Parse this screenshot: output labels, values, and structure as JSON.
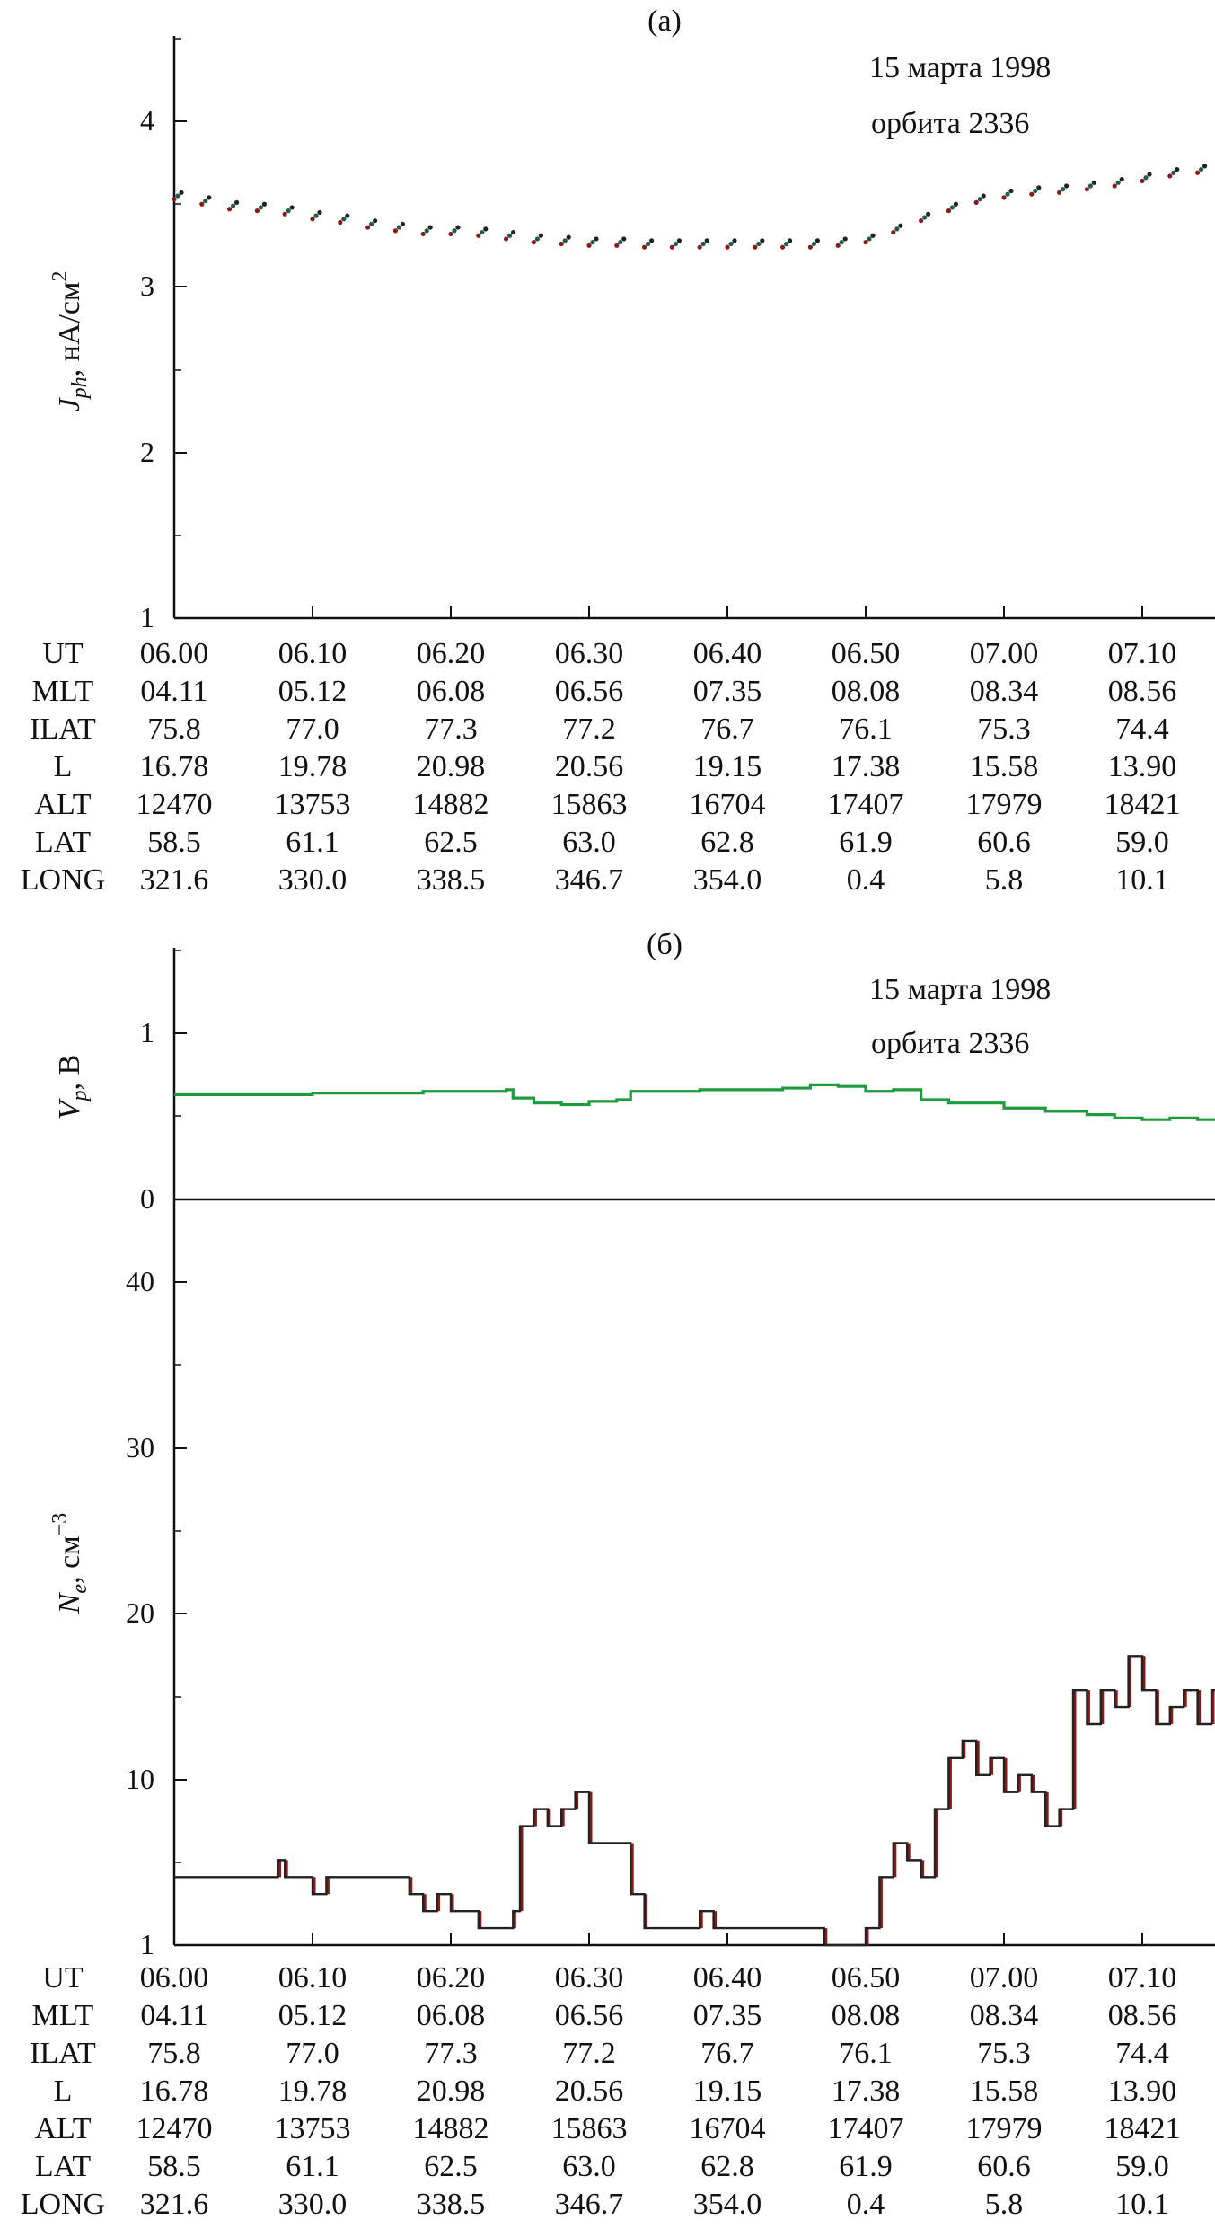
{
  "chart_data": [
    {
      "type": "scatter",
      "panel_label": "(a)",
      "annotation_lines": [
        "15 марта 1998",
        "орбита 2336"
      ],
      "ylabel": {
        "main": "J",
        "sub": "ph",
        "unit": ", нА/см",
        "sup": "2"
      },
      "y_ticks": [
        "1",
        "2",
        "3",
        "4"
      ],
      "ylim": [
        1,
        4.5
      ],
      "xlim_minutes": [
        0,
        75.5
      ],
      "colors": [
        "#8a1a1a",
        "#1e5c52",
        "#222222"
      ],
      "series": [
        {
          "name": "",
          "points": [
            [
              0,
              3.55
            ],
            [
              2,
              3.52
            ],
            [
              4,
              3.49
            ],
            [
              6,
              3.48
            ],
            [
              8,
              3.46
            ],
            [
              10,
              3.43
            ],
            [
              12,
              3.41
            ],
            [
              14,
              3.38
            ],
            [
              16,
              3.36
            ],
            [
              18,
              3.34
            ],
            [
              20,
              3.34
            ],
            [
              22,
              3.33
            ],
            [
              24,
              3.31
            ],
            [
              26,
              3.29
            ],
            [
              28,
              3.28
            ],
            [
              30,
              3.27
            ],
            [
              32,
              3.27
            ],
            [
              34,
              3.26
            ],
            [
              36,
              3.26
            ],
            [
              38,
              3.26
            ],
            [
              40,
              3.26
            ],
            [
              42,
              3.26
            ],
            [
              44,
              3.26
            ],
            [
              46,
              3.26
            ],
            [
              48,
              3.27
            ],
            [
              50,
              3.29
            ],
            [
              52,
              3.35
            ],
            [
              54,
              3.42
            ],
            [
              56,
              3.48
            ],
            [
              58,
              3.53
            ],
            [
              60,
              3.56
            ],
            [
              62,
              3.58
            ],
            [
              64,
              3.59
            ],
            [
              66,
              3.61
            ],
            [
              68,
              3.63
            ],
            [
              70,
              3.66
            ],
            [
              72,
              3.69
            ],
            [
              74,
              3.71
            ],
            [
              75.5,
              3.73
            ]
          ]
        }
      ]
    },
    {
      "type": "line",
      "panel_label": "(б)",
      "annotation_lines": [
        "15 марта 1998",
        "орбита 2336"
      ],
      "ylabel": {
        "main": "V",
        "sub": "p",
        "unit": ", В"
      },
      "y_ticks": [
        "0",
        "1"
      ],
      "ylim": [
        0,
        1.5
      ],
      "color": "#1f9a3c",
      "series": [
        {
          "name": "",
          "points": [
            [
              0,
              0.63
            ],
            [
              5,
              0.63
            ],
            [
              10,
              0.64
            ],
            [
              15,
              0.64
            ],
            [
              18,
              0.65
            ],
            [
              24,
              0.66
            ],
            [
              24.5,
              0.61
            ],
            [
              26,
              0.58
            ],
            [
              28,
              0.57
            ],
            [
              30,
              0.59
            ],
            [
              32,
              0.6
            ],
            [
              33,
              0.65
            ],
            [
              38,
              0.66
            ],
            [
              44,
              0.67
            ],
            [
              46,
              0.69
            ],
            [
              48,
              0.68
            ],
            [
              50,
              0.65
            ],
            [
              52,
              0.66
            ],
            [
              54,
              0.6
            ],
            [
              56,
              0.58
            ],
            [
              60,
              0.55
            ],
            [
              63,
              0.53
            ],
            [
              66,
              0.51
            ],
            [
              68,
              0.49
            ],
            [
              70,
              0.48
            ],
            [
              72,
              0.49
            ],
            [
              74,
              0.48
            ],
            [
              75.5,
              0.46
            ]
          ]
        }
      ]
    },
    {
      "type": "line",
      "ylabel": {
        "main": "N",
        "sub": "e",
        "unit": ", см",
        "sup": "−3"
      },
      "y_ticks": [
        "1",
        "10",
        "20",
        "30",
        "40"
      ],
      "ylim": [
        1,
        40
      ],
      "color": "#222222",
      "accent_color": "#8a1a1a",
      "series": [
        {
          "name": "",
          "points": [
            [
              0,
              5
            ],
            [
              2,
              5
            ],
            [
              4,
              5
            ],
            [
              6,
              5
            ],
            [
              7.5,
              6
            ],
            [
              8,
              5
            ],
            [
              10,
              4
            ],
            [
              11,
              5
            ],
            [
              14,
              5
            ],
            [
              16,
              5
            ],
            [
              17,
              4
            ],
            [
              18,
              3
            ],
            [
              19,
              4
            ],
            [
              20,
              3
            ],
            [
              22,
              2
            ],
            [
              24,
              2
            ],
            [
              24.5,
              3
            ],
            [
              25,
              8
            ],
            [
              26,
              9
            ],
            [
              27,
              8
            ],
            [
              28,
              9
            ],
            [
              29,
              10
            ],
            [
              30,
              7
            ],
            [
              32,
              7
            ],
            [
              33,
              4
            ],
            [
              34,
              2
            ],
            [
              36,
              2
            ],
            [
              38,
              3
            ],
            [
              39,
              2
            ],
            [
              40,
              2
            ],
            [
              42,
              2
            ],
            [
              44,
              2
            ],
            [
              46,
              2
            ],
            [
              47,
              1
            ],
            [
              49,
              1
            ],
            [
              50,
              2
            ],
            [
              51,
              5
            ],
            [
              52,
              7
            ],
            [
              53,
              6
            ],
            [
              54,
              5
            ],
            [
              55,
              9
            ],
            [
              56,
              12
            ],
            [
              57,
              13
            ],
            [
              58,
              11
            ],
            [
              59,
              12
            ],
            [
              60,
              10
            ],
            [
              61,
              11
            ],
            [
              62,
              10
            ],
            [
              63,
              8
            ],
            [
              64,
              9
            ],
            [
              65,
              16
            ],
            [
              66,
              14
            ],
            [
              67,
              16
            ],
            [
              68,
              15
            ],
            [
              69,
              18
            ],
            [
              70,
              16
            ],
            [
              71,
              14
            ],
            [
              72,
              15
            ],
            [
              73,
              16
            ],
            [
              74,
              14
            ],
            [
              75,
              16
            ],
            [
              75.5,
              19
            ]
          ]
        }
      ]
    }
  ],
  "orbit_tables": [
    {
      "row_labels": [
        "UT",
        "MLT",
        "ILAT",
        "L",
        "ALT",
        "LAT",
        "LONG"
      ],
      "columns": [
        [
          "06.00",
          "04.11",
          "75.8",
          "16.78",
          "12470",
          "58.5",
          "321.6"
        ],
        [
          "06.10",
          "05.12",
          "77.0",
          "19.78",
          "13753",
          "61.1",
          "330.0"
        ],
        [
          "06.20",
          "06.08",
          "77.3",
          "20.98",
          "14882",
          "62.5",
          "338.5"
        ],
        [
          "06.30",
          "06.56",
          "77.2",
          "20.56",
          "15863",
          "63.0",
          "346.7"
        ],
        [
          "06.40",
          "07.35",
          "76.7",
          "19.15",
          "16704",
          "62.8",
          "354.0"
        ],
        [
          "06.50",
          "08.08",
          "76.1",
          "17.38",
          "17407",
          "61.9",
          "0.4"
        ],
        [
          "07.00",
          "08.34",
          "75.3",
          "15.58",
          "17979",
          "60.6",
          "5.8"
        ],
        [
          "07.10",
          "08.56",
          "74.4",
          "13.90",
          "18421",
          "59.0",
          "10.1"
        ]
      ]
    },
    {
      "row_labels": [
        "UT",
        "MLT",
        "ILAT",
        "L",
        "ALT",
        "LAT",
        "LONG"
      ],
      "columns": [
        [
          "06.00",
          "04.11",
          "75.8",
          "16.78",
          "12470",
          "58.5",
          "321.6"
        ],
        [
          "06.10",
          "05.12",
          "77.0",
          "19.78",
          "13753",
          "61.1",
          "330.0"
        ],
        [
          "06.20",
          "06.08",
          "77.3",
          "20.98",
          "14882",
          "62.5",
          "338.5"
        ],
        [
          "06.30",
          "06.56",
          "77.2",
          "20.56",
          "15863",
          "63.0",
          "346.7"
        ],
        [
          "06.40",
          "07.35",
          "76.7",
          "19.15",
          "16704",
          "62.8",
          "354.0"
        ],
        [
          "06.50",
          "08.08",
          "76.1",
          "17.38",
          "17407",
          "61.9",
          "0.4"
        ],
        [
          "07.00",
          "08.34",
          "75.3",
          "15.58",
          "17979",
          "60.6",
          "5.8"
        ],
        [
          "07.10",
          "08.56",
          "74.4",
          "13.90",
          "18421",
          "59.0",
          "10.1"
        ]
      ]
    }
  ]
}
